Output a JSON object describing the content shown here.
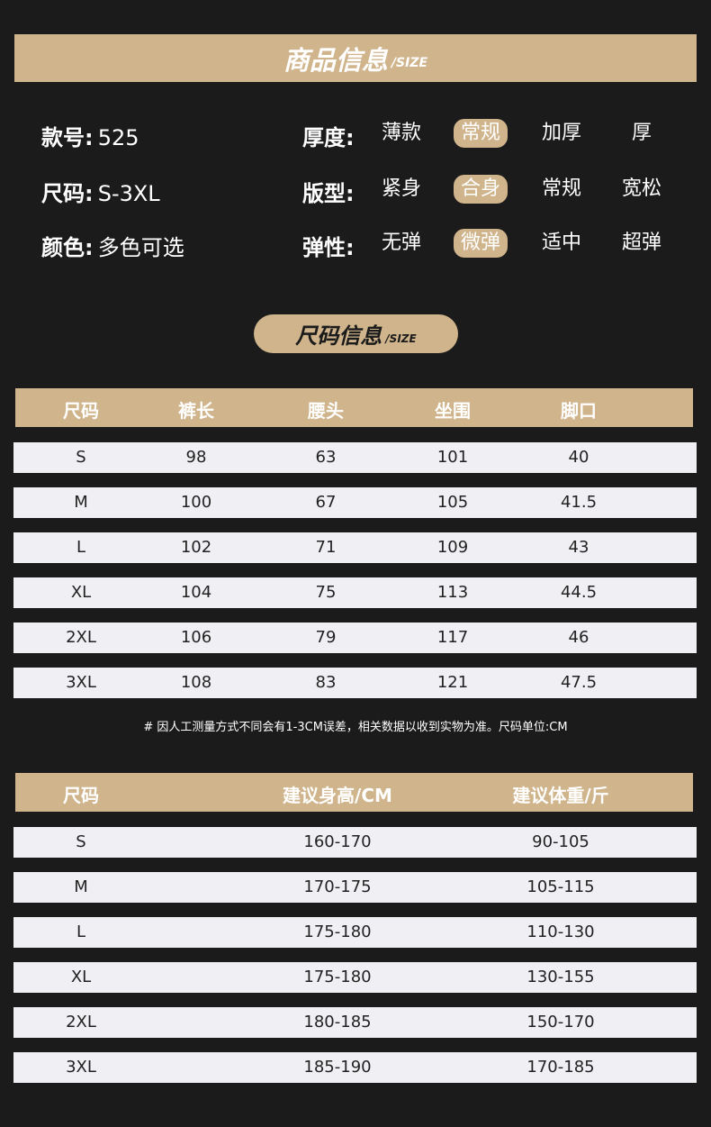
{
  "banner": {
    "title": "商品信息",
    "sub": "/SIZE"
  },
  "info": {
    "style_label": "款号:",
    "style_value": "525",
    "size_label": "尺码:",
    "size_value": "S-3XL",
    "color_label": "颜色:",
    "color_value": "多色可选",
    "attrs": [
      {
        "label": "厚度:",
        "options": [
          "薄款",
          "常规",
          "加厚",
          "厚"
        ],
        "selected": "常规"
      },
      {
        "label": "版型:",
        "options": [
          "紧身",
          "合身",
          "常规",
          "宽松"
        ],
        "selected": "合身"
      },
      {
        "label": "弹性:",
        "options": [
          "无弹",
          "微弹",
          "适中",
          "超弹"
        ],
        "selected": "微弹"
      }
    ]
  },
  "size_pill": {
    "title": "尺码信息",
    "sub": "/SIZE"
  },
  "table1": {
    "headers": [
      "尺码",
      "裤长",
      "腰头",
      "坐围",
      "脚口"
    ],
    "rows": [
      [
        "S",
        "98",
        "63",
        "101",
        "40"
      ],
      [
        "M",
        "100",
        "67",
        "105",
        "41.5"
      ],
      [
        "L",
        "102",
        "71",
        "109",
        "43"
      ],
      [
        "XL",
        "104",
        "75",
        "113",
        "44.5"
      ],
      [
        "2XL",
        "106",
        "79",
        "117",
        "46"
      ],
      [
        "3XL",
        "108",
        "83",
        "121",
        "47.5"
      ]
    ]
  },
  "note": "# 因人工测量方式不同会有1-3CM误差，相关数据以收到实物为准。尺码单位:CM",
  "table2": {
    "headers": [
      "尺码",
      "建议身高/CM",
      "建议体重/斤"
    ],
    "rows": [
      [
        "S",
        "160-170",
        "90-105"
      ],
      [
        "M",
        "170-175",
        "105-115"
      ],
      [
        "L",
        "175-180",
        "110-130"
      ],
      [
        "XL",
        "175-180",
        "130-155"
      ],
      [
        "2XL",
        "180-185",
        "150-170"
      ],
      [
        "3XL",
        "185-190",
        "170-185"
      ]
    ]
  },
  "colors": {
    "background": "#1b1b1b",
    "accent": "#cfb48c",
    "row": "#f0eff3"
  }
}
